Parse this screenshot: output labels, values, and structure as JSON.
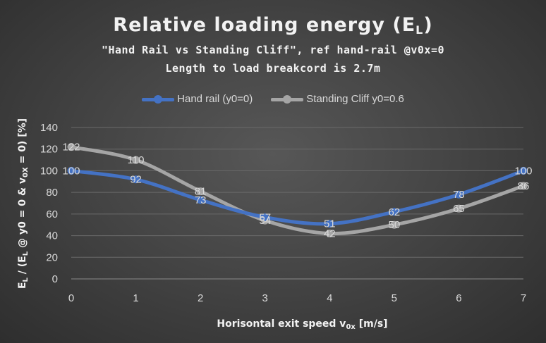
{
  "chart_data": {
    "type": "line",
    "title": "Relative loading energy (E",
    "title_sub": "L",
    "title_end": ")",
    "subtitle_line1": "\"Hand Rail vs Standing Cliff\", ref hand-rail @v0x=0",
    "subtitle_line2": "Length to load breakcord is 2.7m",
    "xlabel_pre": "Horisontal exit speed v",
    "xlabel_sub": "0x",
    "xlabel_post": " [m/s]",
    "ylabel_p1": "E",
    "ylabel_s1": "L",
    "ylabel_p2": " / (E",
    "ylabel_s2": "L",
    "ylabel_p3": " @ y0 = 0 & v",
    "ylabel_s3": "0X",
    "ylabel_p4": " = 0) [%]",
    "x": [
      0,
      1,
      2,
      3,
      4,
      5,
      6,
      7
    ],
    "xlim": [
      0,
      7
    ],
    "ylim": [
      0,
      140
    ],
    "yticks": [
      0,
      20,
      40,
      60,
      80,
      100,
      120,
      140
    ],
    "grid": true,
    "legend_position": "top",
    "series": [
      {
        "name": "Hand rail (y0=0)",
        "color": "#4472c4",
        "values": [
          100,
          92,
          73,
          57,
          51,
          62,
          78,
          100
        ]
      },
      {
        "name": "Standing Cliff y0=0.6",
        "color": "#a5a5a5",
        "values": [
          122,
          110,
          81,
          54,
          42,
          50,
          65,
          86
        ]
      }
    ]
  }
}
